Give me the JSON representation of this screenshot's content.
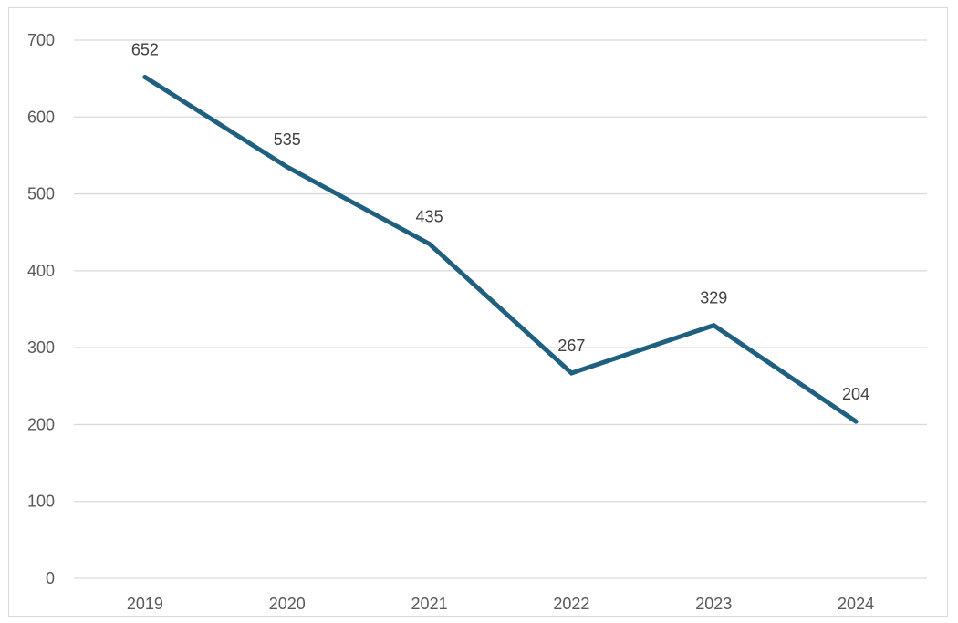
{
  "chart_data": {
    "type": "line",
    "title": "",
    "xlabel": "",
    "ylabel": "",
    "categories": [
      "2019",
      "2020",
      "2021",
      "2022",
      "2023",
      "2024"
    ],
    "series": [
      {
        "values": [
          652,
          535,
          435,
          267,
          329,
          204
        ],
        "color": "#1f5f7f"
      }
    ],
    "ylim": [
      0,
      700
    ],
    "yticks": [
      0,
      100,
      200,
      300,
      400,
      500,
      600,
      700
    ],
    "ytick_labels": [
      "0",
      "100",
      "200",
      "300",
      "400",
      "500",
      "600",
      "700"
    ],
    "data_labels": [
      "652",
      "535",
      "435",
      "267",
      "329",
      "204"
    ],
    "grid": true,
    "grid_color": "#d9d9d9",
    "legend": "none"
  }
}
